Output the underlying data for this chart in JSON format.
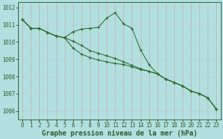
{
  "xlabel": "Graphe pression niveau de la mer (hPa)",
  "hours": [
    0,
    1,
    2,
    3,
    4,
    5,
    6,
    7,
    8,
    9,
    10,
    11,
    12,
    13,
    14,
    15,
    16,
    17,
    18,
    19,
    20,
    21,
    22,
    23
  ],
  "series": [
    [
      1011.3,
      1010.8,
      1010.8,
      1010.55,
      1010.35,
      1010.25,
      1010.6,
      1010.75,
      1010.8,
      1010.85,
      1011.4,
      1011.7,
      1011.05,
      1010.8,
      1009.55,
      1008.7,
      1008.15,
      1007.85,
      1007.65,
      1007.45,
      1007.15,
      1007.0,
      1006.75,
      1006.1
    ],
    [
      1011.3,
      1010.8,
      1010.8,
      1010.55,
      1010.35,
      1010.25,
      1010.05,
      1009.8,
      1009.5,
      1009.35,
      1009.2,
      1009.05,
      1008.85,
      1008.65,
      1008.45,
      1008.3,
      1008.15,
      1007.85,
      1007.65,
      1007.45,
      1007.15,
      1007.0,
      1006.75,
      1006.1
    ],
    [
      1011.3,
      1010.8,
      1010.8,
      1010.55,
      1010.35,
      1010.25,
      1009.65,
      1009.3,
      1009.1,
      1008.95,
      1008.85,
      1008.75,
      1008.7,
      1008.55,
      1008.4,
      1008.3,
      1008.15,
      1007.85,
      1007.65,
      1007.45,
      1007.15,
      1007.0,
      1006.75,
      1006.1
    ]
  ],
  "line_color": "#2d6a2d",
  "marker": "+",
  "background_color": "#b2e0e0",
  "ylim": [
    1005.5,
    1012.3
  ],
  "yticks": [
    1006,
    1007,
    1008,
    1009,
    1010,
    1011,
    1012
  ],
  "label_color": "#2d5a2d",
  "title_fontsize": 7.0,
  "tick_fontsize": 5.5,
  "grid_major_color": "#c0d8d8",
  "grid_minor_color": "#d8ecec",
  "spine_color": "#2d5a2d"
}
